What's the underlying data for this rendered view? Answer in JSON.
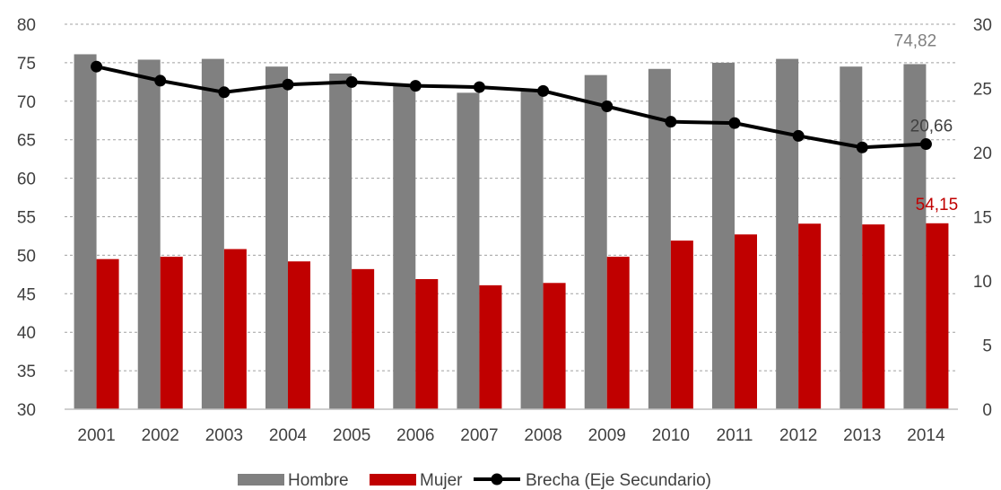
{
  "chart_data": {
    "type": "bar",
    "categories": [
      "2001",
      "2002",
      "2003",
      "2004",
      "2005",
      "2006",
      "2007",
      "2008",
      "2009",
      "2010",
      "2011",
      "2012",
      "2013",
      "2014"
    ],
    "series": [
      {
        "name": "Hombre",
        "kind": "bar",
        "axis": "primary",
        "color": "#808080",
        "values": [
          76.1,
          75.4,
          75.5,
          74.5,
          73.6,
          72.0,
          71.1,
          71.3,
          73.4,
          74.2,
          75.0,
          75.5,
          74.5,
          74.82
        ]
      },
      {
        "name": "Mujer",
        "kind": "bar",
        "axis": "primary",
        "color": "#C00000",
        "values": [
          49.5,
          49.8,
          50.8,
          49.2,
          48.2,
          46.9,
          46.1,
          46.4,
          49.8,
          51.9,
          52.7,
          54.1,
          54.0,
          54.15
        ]
      },
      {
        "name": "Brecha (Eje Secundario)",
        "kind": "line",
        "axis": "secondary",
        "color": "#000000",
        "values": [
          26.7,
          25.6,
          24.7,
          25.3,
          25.5,
          25.2,
          25.1,
          24.8,
          23.6,
          22.4,
          22.3,
          21.3,
          20.4,
          20.66
        ]
      }
    ],
    "y_primary": {
      "min": 30,
      "max": 80,
      "step": 5,
      "ticks": [
        "30",
        "35",
        "40",
        "45",
        "50",
        "55",
        "60",
        "65",
        "70",
        "75",
        "80"
      ]
    },
    "y_secondary": {
      "min": 0,
      "max": 30,
      "step": 5,
      "ticks": [
        "0",
        "5",
        "10",
        "15",
        "20",
        "25",
        "30"
      ]
    },
    "data_labels": [
      {
        "series": 0,
        "index": 13,
        "text": "74,82",
        "color": "#808080"
      },
      {
        "series": 1,
        "index": 13,
        "text": "54,15",
        "color": "#C00000"
      },
      {
        "series": 2,
        "index": 13,
        "text": "20,66",
        "color": "#404040"
      }
    ],
    "grid": "dashed-horizontal",
    "legend": {
      "position": "bottom",
      "items": [
        {
          "label": "Hombre",
          "type": "bar",
          "color": "#808080"
        },
        {
          "label": "Mujer",
          "type": "bar",
          "color": "#C00000"
        },
        {
          "label": "Brecha (Eje Secundario)",
          "type": "line",
          "color": "#000000"
        }
      ]
    }
  }
}
